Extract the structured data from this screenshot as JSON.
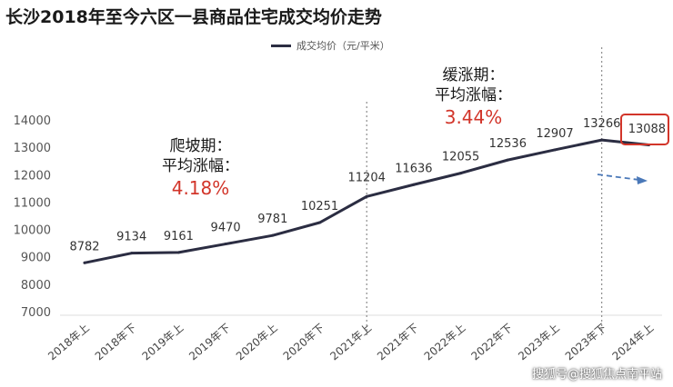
{
  "title": "长沙2018年至今六区一县商品住宅成交均价走势",
  "legend_label": "成交均价（元/平米）",
  "annotations": [
    {
      "name": "climb-phase",
      "line1": "爬坡期：",
      "line2": "平均涨幅：",
      "pct": "4.18%"
    },
    {
      "name": "slow-phase",
      "line1": "缓涨期：",
      "line2": "平均涨幅：",
      "pct": "3.44%"
    }
  ],
  "watermark": "搜狐号@搜狐焦点南平站",
  "colors": {
    "line": "#2b2d42",
    "accent": "#d2352a",
    "forecast": "#4a78b8",
    "axis_text": "#555555"
  },
  "chart_data": {
    "type": "line",
    "title": "长沙2018年至今六区一县商品住宅成交均价走势",
    "xlabel": "",
    "ylabel": "",
    "categories": [
      "2018年上",
      "2018年下",
      "2019年上",
      "2019年下",
      "2020年上",
      "2020年下",
      "2021年上",
      "2021年下",
      "2022年上",
      "2022年下",
      "2023年上",
      "2023年下",
      "2024年上"
    ],
    "series": [
      {
        "name": "成交均价（元/平米）",
        "values": [
          8782,
          9134,
          9161,
          9470,
          9781,
          10251,
          11204,
          11636,
          12055,
          12536,
          12907,
          13266,
          13088
        ],
        "labels": [
          "8782",
          "9134",
          "9161",
          "9470",
          "9781",
          "10251",
          "11204",
          "11636",
          "12055",
          "12536",
          "12907",
          "13266",
          "13088"
        ]
      }
    ],
    "yticks": [
      7000,
      8000,
      9000,
      10000,
      11000,
      12000,
      13000,
      14000
    ],
    "ylim": [
      7000,
      14000
    ],
    "highlighted_point": "13088",
    "forecast_arrow": "down",
    "grid": false,
    "legend": "top-center"
  }
}
